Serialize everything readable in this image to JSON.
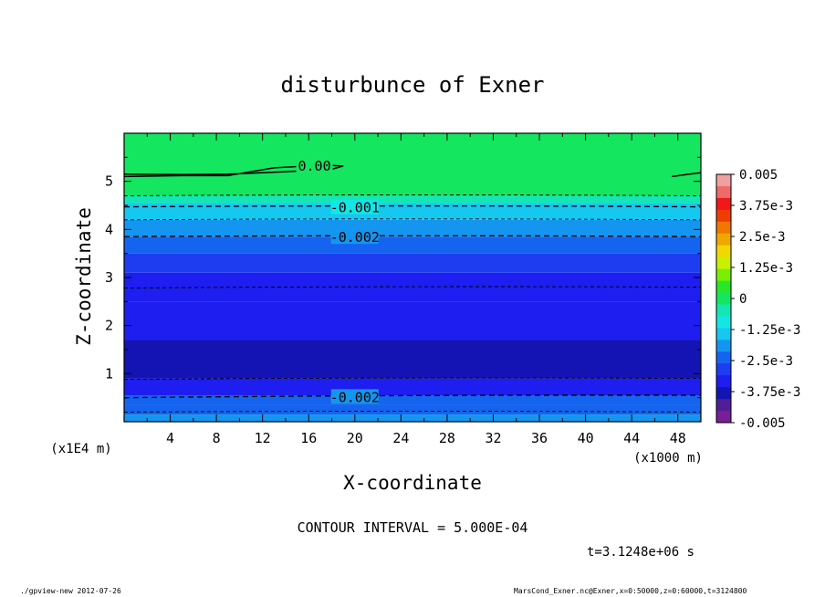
{
  "chart_data": {
    "type": "heatmap",
    "title": "disturbunce of Exner",
    "xlabel": "X-coordinate",
    "ylabel": "Z-coordinate",
    "x_unit": "(x1000 m)",
    "y_unit": "(x1E4 m)",
    "xlim": [
      0,
      50
    ],
    "ylim": [
      0,
      6
    ],
    "x_ticks": [
      4,
      8,
      12,
      16,
      20,
      24,
      28,
      32,
      36,
      40,
      44,
      48
    ],
    "y_ticks": [
      1,
      2,
      3,
      4,
      5
    ],
    "colorbar": {
      "range": [
        -0.005,
        0.005
      ],
      "tick_values": [
        0.005,
        0.00375,
        0.0025,
        0.00125,
        0,
        -0.00125,
        -0.0025,
        -0.00375,
        -0.005
      ],
      "tick_labels": [
        "0.005",
        "3.75e-3",
        "2.5e-3",
        "1.25e-3",
        "0",
        "-1.25e-3",
        "-2.5e-3",
        "-3.75e-3",
        "-0.005"
      ],
      "colors": [
        "#f0a0a0",
        "#f06a6a",
        "#f01818",
        "#f03c00",
        "#f07800",
        "#f0a800",
        "#f0d800",
        "#c8f000",
        "#78f000",
        "#28e628",
        "#14e660",
        "#14e6b4",
        "#14e6e6",
        "#14c8f0",
        "#1496f0",
        "#1464f0",
        "#1e3cf0",
        "#1e1ef0",
        "#1414b4",
        "#501e96",
        "#781e96"
      ]
    },
    "levels": [
      {
        "z_bottom": 0.0,
        "z_top": 0.15,
        "value": -0.0018
      },
      {
        "z_bottom": 0.15,
        "z_top": 0.35,
        "value": -0.0022
      },
      {
        "z_bottom": 0.35,
        "z_top": 0.55,
        "value": -0.0026
      },
      {
        "z_bottom": 0.55,
        "z_top": 0.9,
        "value": -0.0031
      },
      {
        "z_bottom": 0.9,
        "z_top": 1.7,
        "value": -0.0036
      },
      {
        "z_bottom": 1.7,
        "z_top": 2.5,
        "value": -0.0033
      },
      {
        "z_bottom": 2.5,
        "z_top": 3.1,
        "value": -0.0031
      },
      {
        "z_bottom": 3.1,
        "z_top": 3.5,
        "value": -0.0027
      },
      {
        "z_bottom": 3.5,
        "z_top": 3.85,
        "value": -0.0022
      },
      {
        "z_bottom": 3.85,
        "z_top": 4.2,
        "value": -0.0018
      },
      {
        "z_bottom": 4.2,
        "z_top": 4.55,
        "value": -0.0012
      },
      {
        "z_bottom": 4.55,
        "z_top": 4.7,
        "value": -0.0007
      },
      {
        "z_bottom": 4.7,
        "z_top": 6.0,
        "value": 0.0001
      }
    ],
    "contours": [
      {
        "value": -0.0005,
        "z": [
          4.7,
          4.7
        ],
        "label": ""
      },
      {
        "value": -0.001,
        "z": [
          4.47,
          4.47
        ],
        "label": "-0.001"
      },
      {
        "value": -0.0015,
        "z": [
          4.2,
          4.2
        ],
        "label": ""
      },
      {
        "value": -0.002,
        "z": [
          3.85,
          3.85
        ],
        "label": "-0.002"
      },
      {
        "value": -0.0025,
        "z": [
          2.78,
          2.8
        ],
        "label": ""
      },
      {
        "value": -0.0025,
        "z": [
          0.88,
          0.9
        ],
        "label": ""
      },
      {
        "value": -0.002,
        "z": [
          0.5,
          0.55
        ],
        "label": "-0.002"
      },
      {
        "value": -0.0015,
        "z": [
          0.2,
          0.2
        ],
        "label": ""
      }
    ],
    "zero_contour": {
      "label": "0.00",
      "points": [
        [
          0,
          5.1
        ],
        [
          5,
          5.12
        ],
        [
          9,
          5.12
        ],
        [
          13,
          5.28
        ],
        [
          16,
          5.32
        ],
        [
          18,
          5.33
        ],
        [
          19,
          5.32
        ],
        [
          18,
          5.25
        ],
        [
          14,
          5.2
        ],
        [
          9,
          5.15
        ],
        [
          5,
          5.14
        ],
        [
          0,
          5.15
        ]
      ]
    },
    "zero_contour_right": {
      "points": [
        [
          47.5,
          5.1
        ],
        [
          49,
          5.15
        ],
        [
          50,
          5.18
        ]
      ]
    },
    "contour_interval_text": "CONTOUR INTERVAL = 5.000E-04",
    "time_text": "t=3.1248e+06 s"
  },
  "footer": {
    "left": "./gpview-new  2012-07-26",
    "right": "MarsCond_Exner.nc@Exner,x=0:50000,z=0:60000,t=3124800"
  }
}
